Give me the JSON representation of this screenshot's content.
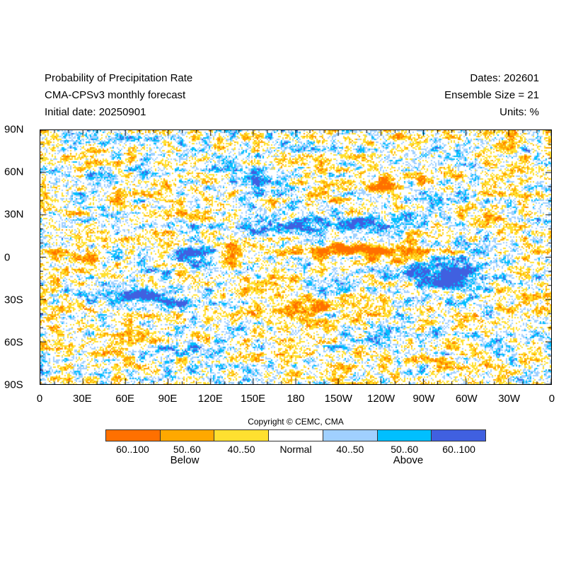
{
  "header": {
    "title": "Probability of Precipitation Rate",
    "model": "CMA-CPSv3 monthly forecast",
    "initial": "Initial date: 20250901",
    "dates": "Dates: 202601",
    "ensemble": "Ensemble Size = 21",
    "units": "Units: %"
  },
  "axes": {
    "lat_labels": [
      "90N",
      "60N",
      "30N",
      "0",
      "30S",
      "60S",
      "90S"
    ],
    "lon_labels": [
      "0",
      "30E",
      "60E",
      "90E",
      "120E",
      "150E",
      "180",
      "150W",
      "120W",
      "90W",
      "60W",
      "30W",
      "0"
    ]
  },
  "legend": {
    "copyright": "Copyright © CEMC, CMA",
    "bins": [
      {
        "label": "60..100",
        "color": "#ff7000"
      },
      {
        "label": "50..60",
        "color": "#ffa800"
      },
      {
        "label": "40..50",
        "color": "#ffe030"
      },
      {
        "label": "Normal",
        "color": "#ffffff"
      },
      {
        "label": "40..50",
        "color": "#a0d0ff"
      },
      {
        "label": "50..60",
        "color": "#00bfff"
      },
      {
        "label": "60..100",
        "color": "#4060e0"
      }
    ],
    "below": "Below",
    "above": "Above"
  }
}
